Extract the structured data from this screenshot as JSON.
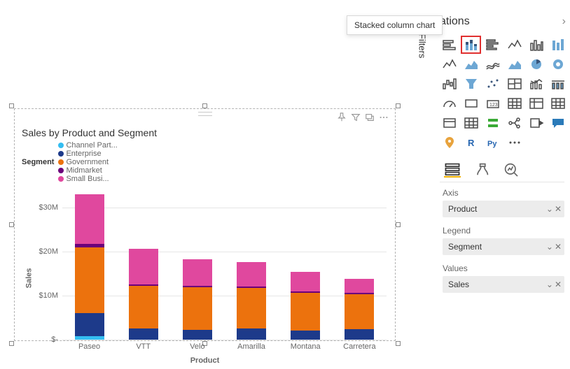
{
  "tooltip": "Stacked column chart",
  "panel": {
    "title_partial": "ations"
  },
  "filters": {
    "label": "Filters"
  },
  "chart": {
    "title": "Sales by Product and Segment",
    "legend_title": "Segment",
    "ylabel": "Sales",
    "xlabel": "Product",
    "ylim_max": 34,
    "y_ticks": [
      {
        "v": 0,
        "label": "$-"
      },
      {
        "v": 10,
        "label": "$10M"
      },
      {
        "v": 20,
        "label": "$20M"
      },
      {
        "v": 30,
        "label": "$30M"
      }
    ],
    "grid_color": "#e6e6e6",
    "segments": [
      {
        "name": "Channel Part...",
        "color": "#33bdf1"
      },
      {
        "name": "Enterprise",
        "color": "#1d3a8a"
      },
      {
        "name": "Government",
        "color": "#ec720d"
      },
      {
        "name": "Midmarket",
        "color": "#6b007b"
      },
      {
        "name": "Small Busi...",
        "color": "#e0489e"
      }
    ],
    "categories": [
      {
        "label": "Paseo",
        "values": [
          0.8,
          5.2,
          15.0,
          0.7,
          11.3
        ]
      },
      {
        "label": "VTT",
        "values": [
          0.0,
          2.6,
          9.6,
          0.3,
          8.1
        ]
      },
      {
        "label": "Velo",
        "values": [
          0.0,
          2.2,
          9.7,
          0.3,
          6.0
        ]
      },
      {
        "label": "Amarilla",
        "values": [
          0.0,
          2.6,
          9.2,
          0.3,
          5.6
        ]
      },
      {
        "label": "Montana",
        "values": [
          0.0,
          2.1,
          8.6,
          0.3,
          4.4
        ]
      },
      {
        "label": "Carretera",
        "values": [
          0.0,
          2.4,
          8.0,
          0.2,
          3.2
        ]
      }
    ]
  },
  "wells": {
    "axis": {
      "label": "Axis",
      "value": "Product"
    },
    "legend": {
      "label": "Legend",
      "value": "Segment"
    },
    "values": {
      "label": "Values",
      "value": "Sales"
    }
  },
  "viz_icons": [
    "bar-stacked-h",
    "stacked-column",
    "clustered-bar-h",
    "line",
    "clustered-column",
    "stacked-bar-alt",
    "line-alt",
    "area",
    "ribbon",
    "area-stacked",
    "pie",
    "donut",
    "waterfall",
    "funnel",
    "scatter",
    "treemap",
    "combo",
    "card-100",
    "gauge",
    "card",
    "kpi",
    "table",
    "matrix",
    "table-alt",
    "slicer",
    "table-grid",
    "multi-row",
    "decomposition",
    "key-influencers",
    "qna",
    "map",
    "r",
    "py",
    "more-icon"
  ]
}
